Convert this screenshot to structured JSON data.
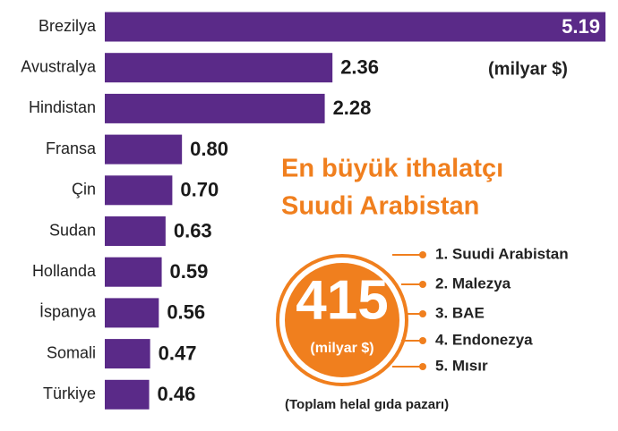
{
  "chart_data": {
    "type": "bar",
    "orientation": "horizontal",
    "categories": [
      "Brezilya",
      "Avustralya",
      "Hindistan",
      "Fransa",
      "Çin",
      "Sudan",
      "Hollanda",
      "İspanya",
      "Somali",
      "Türkiye"
    ],
    "values": [
      5.19,
      2.36,
      2.28,
      0.8,
      0.7,
      0.63,
      0.59,
      0.56,
      0.47,
      0.46
    ],
    "value_labels": [
      "5.19",
      "2.36",
      "2.28",
      "0.80",
      "0.70",
      "0.63",
      "0.59",
      "0.56",
      "0.47",
      "0.46"
    ],
    "unit": "(milyar $)",
    "color": "#5a2a88"
  },
  "callout": {
    "title": [
      "En büyük ithalatçı",
      "Suudi Arabistan"
    ],
    "total": 415,
    "total_unit": "(milyar $)",
    "ranking": [
      "1. Suudi Arabistan",
      "2.  Malezya",
      "3. BAE",
      "4. Endonezya",
      "5. Mısır"
    ],
    "note": "(Toplam helal gıda pazarı)",
    "color": "#f07f1e"
  }
}
